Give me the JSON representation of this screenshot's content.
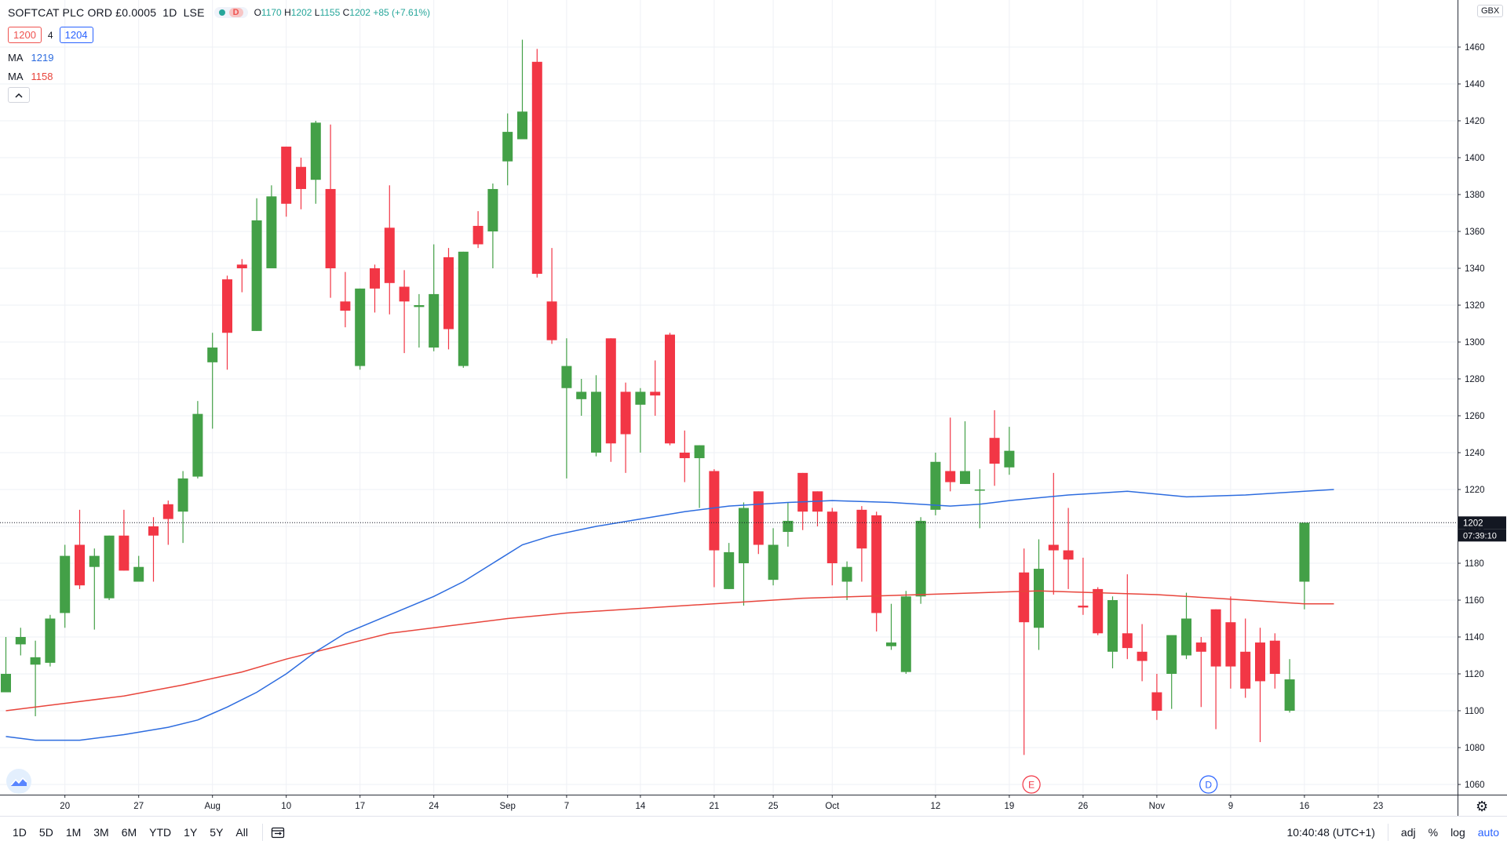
{
  "header": {
    "symbol": "SOFTCAT PLC ORD £0.0005",
    "interval": "1D",
    "exchange": "LSE",
    "status_label": "D",
    "ohlc": {
      "o": "1170",
      "h": "1202",
      "l": "1155",
      "c": "1202",
      "chg": "+85 (+7.61%)"
    },
    "bid": "1200",
    "spread": "4",
    "ask": "1204",
    "ma1_label": "MA",
    "ma1_value": "1219",
    "ma2_label": "MA",
    "ma2_value": "1158",
    "collapse_icon": "chevron-up-icon"
  },
  "colors": {
    "up": "#43a047",
    "down": "#f23645",
    "ma1": "#2d6cdf",
    "ma2": "#e8453c",
    "grid": "#eef0f5",
    "axis_text": "#131722"
  },
  "price_axis": {
    "currency": "GBX",
    "current_price": "1202",
    "countdown": "07:39:10"
  },
  "time_axis": {
    "current_time": "10:40:48 (UTC+1)"
  },
  "events": [
    {
      "label": "E",
      "type": "earnings"
    },
    {
      "label": "D",
      "type": "dividend"
    }
  ],
  "bottom_bar": {
    "ranges": [
      "1D",
      "5D",
      "1M",
      "3M",
      "6M",
      "YTD",
      "1Y",
      "5Y",
      "All"
    ],
    "controls": [
      "adj",
      "%",
      "log",
      "auto"
    ]
  },
  "chart_data": {
    "type": "candlestick",
    "ylim": [
      1050,
      1475
    ],
    "yticks": [
      1060,
      1080,
      1100,
      1120,
      1140,
      1160,
      1180,
      1200,
      1220,
      1240,
      1260,
      1280,
      1300,
      1320,
      1340,
      1360,
      1380,
      1400,
      1420,
      1440,
      1460
    ],
    "xticks": [
      {
        "label": "20",
        "index": 4
      },
      {
        "label": "27",
        "index": 9
      },
      {
        "label": "Aug",
        "index": 14
      },
      {
        "label": "10",
        "index": 19
      },
      {
        "label": "17",
        "index": 24
      },
      {
        "label": "24",
        "index": 29
      },
      {
        "label": "Sep",
        "index": 34
      },
      {
        "label": "7",
        "index": 38
      },
      {
        "label": "14",
        "index": 43
      },
      {
        "label": "21",
        "index": 48
      },
      {
        "label": "25",
        "index": 52
      },
      {
        "label": "Oct",
        "index": 56
      },
      {
        "label": "12",
        "index": 63
      },
      {
        "label": "19",
        "index": 68
      },
      {
        "label": "26",
        "index": 73
      },
      {
        "label": "Nov",
        "index": 78
      },
      {
        "label": "9",
        "index": 83
      },
      {
        "label": "16",
        "index": 88
      },
      {
        "label": "23",
        "index": 93
      }
    ],
    "candles": [
      {
        "o": 1110,
        "h": 1140,
        "l": 1110,
        "c": 1120
      },
      {
        "o": 1136,
        "h": 1145,
        "l": 1130,
        "c": 1140
      },
      {
        "o": 1125,
        "h": 1138,
        "l": 1097,
        "c": 1129
      },
      {
        "o": 1126,
        "h": 1152,
        "l": 1124,
        "c": 1150
      },
      {
        "o": 1153,
        "h": 1190,
        "l": 1145,
        "c": 1184
      },
      {
        "o": 1190,
        "h": 1209,
        "l": 1166,
        "c": 1168
      },
      {
        "o": 1178,
        "h": 1188,
        "l": 1144,
        "c": 1184
      },
      {
        "o": 1161,
        "h": 1195,
        "l": 1160,
        "c": 1195
      },
      {
        "o": 1195,
        "h": 1209,
        "l": 1176,
        "c": 1176
      },
      {
        "o": 1170,
        "h": 1184,
        "l": 1170,
        "c": 1178
      },
      {
        "o": 1200,
        "h": 1205,
        "l": 1170,
        "c": 1195
      },
      {
        "o": 1212,
        "h": 1214,
        "l": 1190,
        "c": 1204
      },
      {
        "o": 1208,
        "h": 1230,
        "l": 1191,
        "c": 1226
      },
      {
        "o": 1227,
        "h": 1268,
        "l": 1226,
        "c": 1261
      },
      {
        "o": 1289,
        "h": 1305,
        "l": 1253,
        "c": 1297
      },
      {
        "o": 1334,
        "h": 1336,
        "l": 1285,
        "c": 1305
      },
      {
        "o": 1342,
        "h": 1345,
        "l": 1327,
        "c": 1340
      },
      {
        "o": 1306,
        "h": 1378,
        "l": 1306,
        "c": 1366
      },
      {
        "o": 1340,
        "h": 1385,
        "l": 1340,
        "c": 1379
      },
      {
        "o": 1406,
        "h": 1406,
        "l": 1368,
        "c": 1375
      },
      {
        "o": 1395,
        "h": 1400,
        "l": 1372,
        "c": 1383
      },
      {
        "o": 1388,
        "h": 1420,
        "l": 1375,
        "c": 1419
      },
      {
        "o": 1383,
        "h": 1418,
        "l": 1324,
        "c": 1340
      },
      {
        "o": 1322,
        "h": 1338,
        "l": 1308,
        "c": 1317
      },
      {
        "o": 1287,
        "h": 1329,
        "l": 1285,
        "c": 1329
      },
      {
        "o": 1340,
        "h": 1342,
        "l": 1316,
        "c": 1329
      },
      {
        "o": 1362,
        "h": 1385,
        "l": 1315,
        "c": 1332
      },
      {
        "o": 1330,
        "h": 1339,
        "l": 1294,
        "c": 1322
      },
      {
        "o": 1319,
        "h": 1326,
        "l": 1297,
        "c": 1320
      },
      {
        "o": 1297,
        "h": 1353,
        "l": 1295,
        "c": 1326
      },
      {
        "o": 1346,
        "h": 1351,
        "l": 1296,
        "c": 1307
      },
      {
        "o": 1287,
        "h": 1349,
        "l": 1286,
        "c": 1349
      },
      {
        "o": 1363,
        "h": 1371,
        "l": 1351,
        "c": 1353
      },
      {
        "o": 1360,
        "h": 1386,
        "l": 1340,
        "c": 1383
      },
      {
        "o": 1398,
        "h": 1424,
        "l": 1385,
        "c": 1414
      },
      {
        "o": 1410,
        "h": 1464,
        "l": 1410,
        "c": 1425
      },
      {
        "o": 1452,
        "h": 1459,
        "l": 1335,
        "c": 1337
      },
      {
        "o": 1322,
        "h": 1351,
        "l": 1299,
        "c": 1301
      },
      {
        "o": 1275,
        "h": 1302,
        "l": 1226,
        "c": 1287
      },
      {
        "o": 1269,
        "h": 1280,
        "l": 1260,
        "c": 1273
      },
      {
        "o": 1240,
        "h": 1282,
        "l": 1238,
        "c": 1273
      },
      {
        "o": 1302,
        "h": 1302,
        "l": 1235,
        "c": 1245
      },
      {
        "o": 1273,
        "h": 1278,
        "l": 1229,
        "c": 1250
      },
      {
        "o": 1266,
        "h": 1275,
        "l": 1240,
        "c": 1273
      },
      {
        "o": 1273,
        "h": 1290,
        "l": 1260,
        "c": 1271
      },
      {
        "o": 1304,
        "h": 1305,
        "l": 1244,
        "c": 1245
      },
      {
        "o": 1240,
        "h": 1252,
        "l": 1224,
        "c": 1237
      },
      {
        "o": 1237,
        "h": 1244,
        "l": 1210,
        "c": 1244
      },
      {
        "o": 1230,
        "h": 1231,
        "l": 1167,
        "c": 1187
      },
      {
        "o": 1166,
        "h": 1191,
        "l": 1166,
        "c": 1186
      },
      {
        "o": 1180,
        "h": 1213,
        "l": 1157,
        "c": 1210
      },
      {
        "o": 1219,
        "h": 1219,
        "l": 1185,
        "c": 1190
      },
      {
        "o": 1171,
        "h": 1199,
        "l": 1168,
        "c": 1190
      },
      {
        "o": 1197,
        "h": 1213,
        "l": 1189,
        "c": 1203
      },
      {
        "o": 1229,
        "h": 1229,
        "l": 1198,
        "c": 1208
      },
      {
        "o": 1219,
        "h": 1219,
        "l": 1200,
        "c": 1208
      },
      {
        "o": 1208,
        "h": 1210,
        "l": 1168,
        "c": 1180
      },
      {
        "o": 1170,
        "h": 1181,
        "l": 1160,
        "c": 1178
      },
      {
        "o": 1209,
        "h": 1211,
        "l": 1170,
        "c": 1188
      },
      {
        "o": 1206,
        "h": 1208,
        "l": 1143,
        "c": 1153
      },
      {
        "o": 1135,
        "h": 1158,
        "l": 1133,
        "c": 1137
      },
      {
        "o": 1121,
        "h": 1165,
        "l": 1120,
        "c": 1162
      },
      {
        "o": 1162,
        "h": 1205,
        "l": 1158,
        "c": 1203
      },
      {
        "o": 1209,
        "h": 1240,
        "l": 1206,
        "c": 1235
      },
      {
        "o": 1230,
        "h": 1259,
        "l": 1219,
        "c": 1224
      },
      {
        "o": 1223,
        "h": 1257,
        "l": 1223,
        "c": 1230
      },
      {
        "o": 1220,
        "h": 1231,
        "l": 1199,
        "c": 1220
      },
      {
        "o": 1248,
        "h": 1263,
        "l": 1222,
        "c": 1234
      },
      {
        "o": 1232,
        "h": 1254,
        "l": 1228,
        "c": 1241
      },
      {
        "o": 1175,
        "h": 1188,
        "l": 1076,
        "c": 1148
      },
      {
        "o": 1145,
        "h": 1193,
        "l": 1133,
        "c": 1177
      },
      {
        "o": 1190,
        "h": 1229,
        "l": 1163,
        "c": 1187
      },
      {
        "o": 1187,
        "h": 1210,
        "l": 1166,
        "c": 1182
      },
      {
        "o": 1157,
        "h": 1183,
        "l": 1152,
        "c": 1156
      },
      {
        "o": 1166,
        "h": 1167,
        "l": 1141,
        "c": 1142
      },
      {
        "o": 1132,
        "h": 1162,
        "l": 1123,
        "c": 1160
      },
      {
        "o": 1142,
        "h": 1174,
        "l": 1128,
        "c": 1134
      },
      {
        "o": 1132,
        "h": 1147,
        "l": 1116,
        "c": 1127
      },
      {
        "o": 1110,
        "h": 1120,
        "l": 1095,
        "c": 1100
      },
      {
        "o": 1120,
        "h": 1139,
        "l": 1101,
        "c": 1141
      },
      {
        "o": 1130,
        "h": 1164,
        "l": 1128,
        "c": 1150
      },
      {
        "o": 1137,
        "h": 1140,
        "l": 1102,
        "c": 1132
      },
      {
        "o": 1155,
        "h": 1155,
        "l": 1090,
        "c": 1124
      },
      {
        "o": 1148,
        "h": 1162,
        "l": 1112,
        "c": 1124
      },
      {
        "o": 1132,
        "h": 1150,
        "l": 1107,
        "c": 1112
      },
      {
        "o": 1137,
        "h": 1145,
        "l": 1083,
        "c": 1116
      },
      {
        "o": 1138,
        "h": 1142,
        "l": 1112,
        "c": 1120
      },
      {
        "o": 1100,
        "h": 1128,
        "l": 1099,
        "c": 1117
      },
      {
        "o": 1170,
        "h": 1202,
        "l": 1155,
        "c": 1202
      }
    ],
    "ma_slow": {
      "name": "MA",
      "color": "#2d6cdf",
      "points": [
        [
          0,
          1086
        ],
        [
          2,
          1084
        ],
        [
          5,
          1084
        ],
        [
          8,
          1087
        ],
        [
          11,
          1091
        ],
        [
          13,
          1095
        ],
        [
          15,
          1102
        ],
        [
          17,
          1110
        ],
        [
          19,
          1120
        ],
        [
          21,
          1132
        ],
        [
          23,
          1142
        ],
        [
          26,
          1152
        ],
        [
          29,
          1162
        ],
        [
          31,
          1170
        ],
        [
          33,
          1180
        ],
        [
          35,
          1190
        ],
        [
          37,
          1195
        ],
        [
          40,
          1200
        ],
        [
          43,
          1204
        ],
        [
          46,
          1208
        ],
        [
          49,
          1211
        ],
        [
          53,
          1213
        ],
        [
          56,
          1214
        ],
        [
          60,
          1213
        ],
        [
          64,
          1211
        ],
        [
          66,
          1212
        ],
        [
          68,
          1214
        ],
        [
          72,
          1217
        ],
        [
          76,
          1219
        ],
        [
          80,
          1216
        ],
        [
          84,
          1217
        ],
        [
          88,
          1219
        ],
        [
          90,
          1220
        ]
      ]
    },
    "ma_fast": {
      "name": "MA",
      "color": "#e8453c",
      "points": [
        [
          0,
          1100
        ],
        [
          4,
          1104
        ],
        [
          8,
          1108
        ],
        [
          12,
          1114
        ],
        [
          16,
          1121
        ],
        [
          19,
          1128
        ],
        [
          22,
          1134
        ],
        [
          24,
          1138
        ],
        [
          26,
          1142
        ],
        [
          30,
          1146
        ],
        [
          34,
          1150
        ],
        [
          38,
          1153
        ],
        [
          42,
          1155
        ],
        [
          46,
          1157
        ],
        [
          50,
          1159
        ],
        [
          54,
          1161
        ],
        [
          58,
          1162
        ],
        [
          62,
          1163
        ],
        [
          66,
          1164
        ],
        [
          70,
          1165
        ],
        [
          74,
          1164
        ],
        [
          78,
          1163
        ],
        [
          82,
          1161
        ],
        [
          86,
          1159
        ],
        [
          88,
          1158
        ],
        [
          90,
          1158
        ]
      ]
    }
  }
}
